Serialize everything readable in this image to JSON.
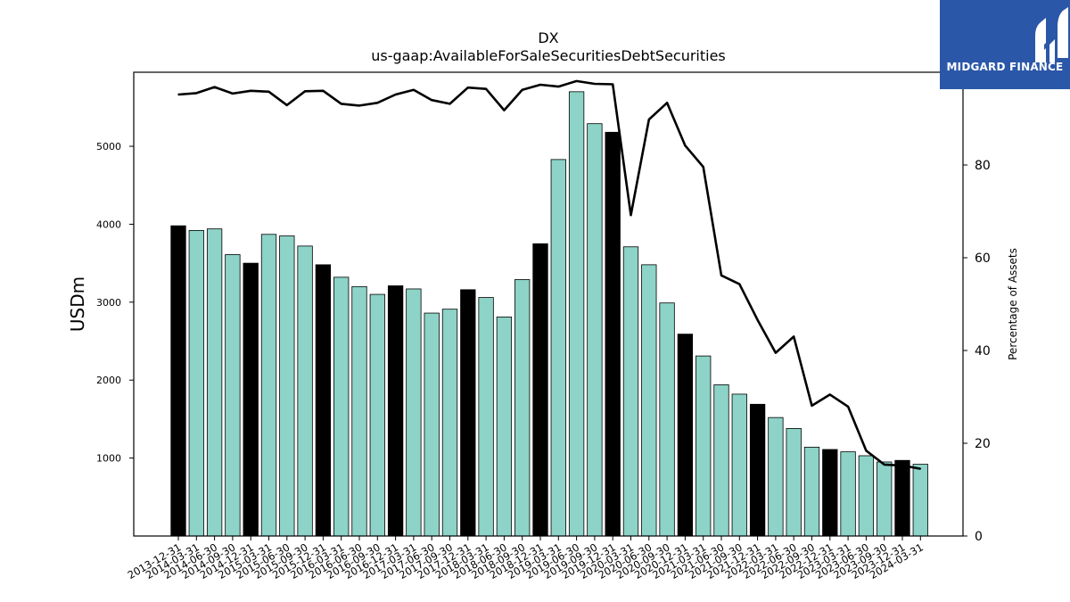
{
  "logo": {
    "text": "MIDGARD FINANCE",
    "background": "#2b57a8",
    "foreground": "#ffffff"
  },
  "chart_data": {
    "type": "bar",
    "title": "DX",
    "subtitle": "us-gaap:AvailableForSaleSecuritiesDebtSecurities",
    "ylabel": "USDm",
    "y2label": "Percentage of Assets",
    "ylim": [
      0,
      5950
    ],
    "y2lim": [
      0,
      100
    ],
    "yticks": [
      1000,
      2000,
      3000,
      4000,
      5000
    ],
    "y2ticks": [
      0,
      20,
      40,
      60,
      80
    ],
    "grid": false,
    "colors": {
      "bar": "#8dd3c7",
      "bar_highlight": "#000000",
      "line": "#000000"
    },
    "categories": [
      "2013-12-31",
      "2014-03-31",
      "2014-06-30",
      "2014-09-30",
      "2014-12-31",
      "2015-03-31",
      "2015-06-30",
      "2015-09-30",
      "2015-12-31",
      "2016-03-31",
      "2016-06-30",
      "2016-09-30",
      "2016-12-31",
      "2017-03-31",
      "2017-06-30",
      "2017-09-30",
      "2017-12-31",
      "2018-03-31",
      "2018-06-30",
      "2018-09-30",
      "2018-12-31",
      "2019-03-31",
      "2019-06-30",
      "2019-09-30",
      "2019-12-31",
      "2020-03-31",
      "2020-06-30",
      "2020-09-30",
      "2020-12-31",
      "2021-03-31",
      "2021-06-30",
      "2021-09-30",
      "2021-12-31",
      "2022-03-31",
      "2022-06-30",
      "2022-09-30",
      "2022-12-31",
      "2023-03-31",
      "2023-06-30",
      "2023-09-30",
      "2023-12-31",
      "2024-03-31"
    ],
    "series": [
      {
        "type": "bar",
        "axis": "left",
        "values": [
          3980,
          3920,
          3940,
          3610,
          3500,
          3870,
          3850,
          3720,
          3480,
          3320,
          3200,
          3100,
          3210,
          3170,
          2860,
          2910,
          3160,
          3060,
          2810,
          3290,
          3750,
          4830,
          5700,
          5290,
          5180,
          3710,
          3480,
          2990,
          2590,
          2310,
          1940,
          1820,
          1690,
          1520,
          1380,
          1140,
          1110,
          1080,
          1030,
          950,
          970,
          920
        ],
        "highlight": [
          true,
          false,
          false,
          false,
          true,
          false,
          false,
          false,
          true,
          false,
          false,
          false,
          true,
          false,
          false,
          false,
          true,
          false,
          false,
          false,
          true,
          false,
          false,
          false,
          true,
          false,
          false,
          false,
          true,
          false,
          false,
          false,
          true,
          false,
          false,
          false,
          true,
          false,
          false,
          false,
          true,
          false
        ]
      },
      {
        "type": "line",
        "axis": "right",
        "values": [
          95.2,
          95.5,
          96.8,
          95.4,
          96.0,
          95.8,
          92.9,
          95.9,
          96.0,
          93.2,
          92.8,
          93.4,
          95.2,
          96.2,
          94.0,
          93.2,
          96.7,
          96.4,
          91.8,
          96.2,
          97.3,
          96.9,
          98.1,
          97.5,
          97.4,
          69.2,
          89.8,
          93.4,
          84.2,
          79.6,
          56.2,
          54.3,
          46.6,
          39.5,
          43.0,
          28.1,
          30.5,
          27.9,
          18.4,
          15.4,
          15.2,
          14.5
        ]
      }
    ]
  }
}
